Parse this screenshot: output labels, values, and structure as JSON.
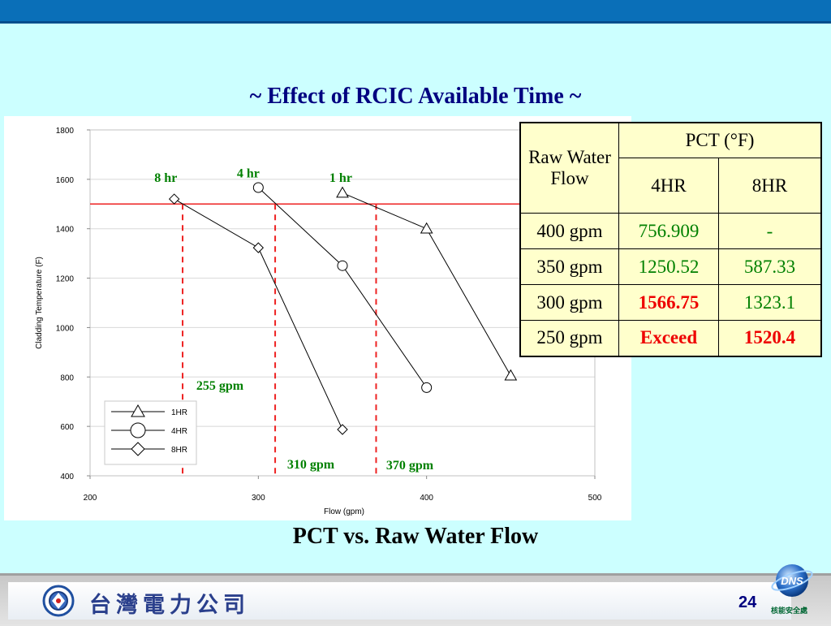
{
  "slide": {
    "title": "~ Effect of RCIC Available Time ~",
    "subtitle": "PCT vs. Raw Water Flow",
    "page_number": "24",
    "company_name": "台灣電力公司",
    "logo_text": "DNS",
    "logo_caption": "核能安全處"
  },
  "colors": {
    "background": "#ccffff",
    "title": "#000080",
    "table_bg": "#ffffcc",
    "green": "#008000",
    "red": "#ee0000"
  },
  "chart_data": {
    "type": "line",
    "xlabel": "Flow (gpm)",
    "ylabel": "Cladding Temperature (F)",
    "xlim": [
      200,
      500
    ],
    "ylim": [
      400,
      1800
    ],
    "xticks": [
      200,
      300,
      400,
      500
    ],
    "yticks": [
      400,
      600,
      800,
      1000,
      1200,
      1400,
      1600,
      1800
    ],
    "grid": true,
    "legend_placement": "bottom-left",
    "series": [
      {
        "name": "1HR",
        "marker": "triangle",
        "x": [
          350,
          400,
          450
        ],
        "y": [
          1545,
          1400,
          805
        ]
      },
      {
        "name": "4HR",
        "marker": "circle",
        "x": [
          300,
          350,
          400
        ],
        "y": [
          1566.75,
          1250.52,
          756.909
        ]
      },
      {
        "name": "8HR",
        "marker": "diamond",
        "x": [
          250,
          300,
          350
        ],
        "y": [
          1520.4,
          1323.1,
          587.33
        ]
      }
    ],
    "limit_line": {
      "y": 1500,
      "color": "#ee2222"
    },
    "vlines": [
      {
        "x": 255,
        "label": "255 gpm"
      },
      {
        "x": 310,
        "label": "310 gpm"
      },
      {
        "x": 370,
        "label": "370 gpm"
      }
    ],
    "annotations": [
      {
        "text": "8 hr",
        "x": 245,
        "y": 1590
      },
      {
        "text": "4 hr",
        "x": 294,
        "y": 1608
      },
      {
        "text": "1 hr",
        "x": 349,
        "y": 1590
      }
    ]
  },
  "table": {
    "header_row_label": "Raw Water Flow",
    "group_header": "PCT (°F)",
    "col_4hr": "4HR",
    "col_8hr": "8HR",
    "rows": [
      {
        "flow": "400 gpm",
        "hr4": "756.909",
        "hr8": "-"
      },
      {
        "flow": "350 gpm",
        "hr4": "1250.52",
        "hr8": "587.33"
      },
      {
        "flow": "300 gpm",
        "hr4": "1566.75",
        "hr8": "1323.1"
      },
      {
        "flow": "250 gpm",
        "hr4": "Exceed",
        "hr8": "1520.4"
      }
    ]
  }
}
